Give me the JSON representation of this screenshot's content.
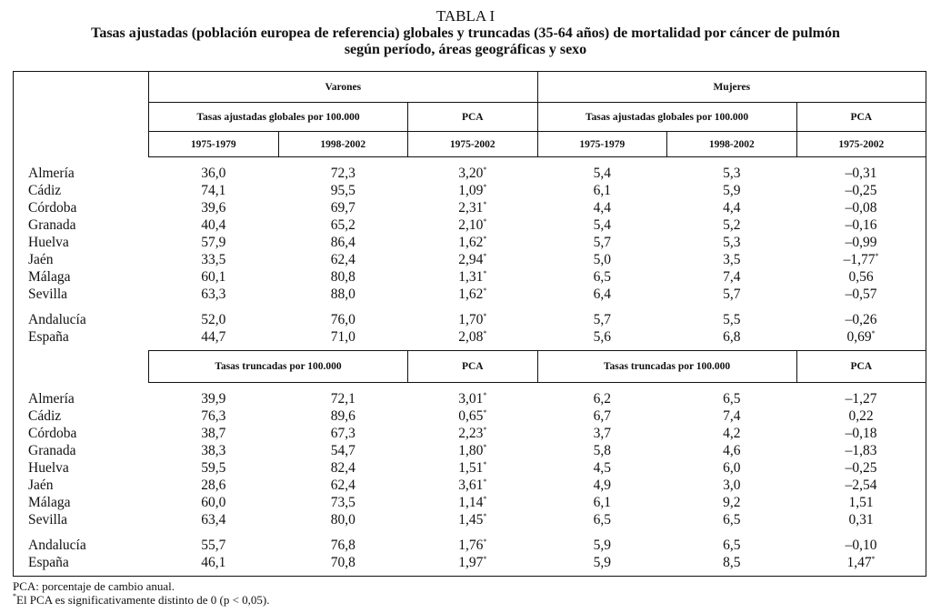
{
  "header": {
    "label": "TABLA I",
    "title_lines": [
      "Tasas ajustadas (población europea de referencia) globales y truncadas (35-64 años) de mortalidad por cáncer de pulmón",
      "según período, áreas geográficas y sexo"
    ]
  },
  "table": {
    "groups": [
      "Varones",
      "Mujeres"
    ],
    "periods": [
      "1975-1979",
      "1998-2002",
      "1975-2002",
      "1975-1979",
      "1998-2002",
      "1975-2002"
    ],
    "sections": [
      {
        "subheaders": [
          "Tasas ajustadas globales por 100.000",
          "PCA",
          "Tasas ajustadas globales por 100.000",
          "PCA"
        ],
        "rows": [
          [
            "Almería",
            "36,0",
            "72,3",
            "3,20*",
            "5,4",
            "5,3",
            "–0,31"
          ],
          [
            "Cádiz",
            "74,1",
            "95,5",
            "1,09*",
            "6,1",
            "5,9",
            "–0,25"
          ],
          [
            "Córdoba",
            "39,6",
            "69,7",
            "2,31*",
            "4,4",
            "4,4",
            "–0,08"
          ],
          [
            "Granada",
            "40,4",
            "65,2",
            "2,10*",
            "5,4",
            "5,2",
            "–0,16"
          ],
          [
            "Huelva",
            "57,9",
            "86,4",
            "1,62*",
            "5,7",
            "5,3",
            "–0,99"
          ],
          [
            "Jaén",
            "33,5",
            "62,4",
            "2,94*",
            "5,0",
            "3,5",
            "–1,77*"
          ],
          [
            "Málaga",
            "60,1",
            "80,8",
            "1,31*",
            "6,5",
            "7,4",
            "0,56"
          ],
          [
            "Sevilla",
            "63,3",
            "88,0",
            "1,62*",
            "6,4",
            "5,7",
            "–0,57"
          ]
        ],
        "totals": [
          [
            "Andalucía",
            "52,0",
            "76,0",
            "1,70*",
            "5,7",
            "5,5",
            "–0,26"
          ],
          [
            "España",
            "44,7",
            "71,0",
            "2,08*",
            "5,6",
            "6,8",
            "0,69*"
          ]
        ]
      },
      {
        "subheaders": [
          "Tasas truncadas por 100.000",
          "PCA",
          "Tasas truncadas por 100.000",
          "PCA"
        ],
        "rows": [
          [
            "Almería",
            "39,9",
            "72,1",
            "3,01*",
            "6,2",
            "6,5",
            "–1,27"
          ],
          [
            "Cádiz",
            "76,3",
            "89,6",
            "0,65*",
            "6,7",
            "7,4",
            "0,22"
          ],
          [
            "Córdoba",
            "38,7",
            "67,3",
            "2,23*",
            "3,7",
            "4,2",
            "–0,18"
          ],
          [
            "Granada",
            "38,3",
            "54,7",
            "1,80*",
            "5,8",
            "4,6",
            "–1,83"
          ],
          [
            "Huelva",
            "59,5",
            "82,4",
            "1,51*",
            "4,5",
            "6,0",
            "–0,25"
          ],
          [
            "Jaén",
            "28,6",
            "62,4",
            "3,61*",
            "4,9",
            "3,0",
            "–2,54"
          ],
          [
            "Málaga",
            "60,0",
            "73,5",
            "1,14*",
            "6,1",
            "9,2",
            "1,51"
          ],
          [
            "Sevilla",
            "63,4",
            "80,0",
            "1,45*",
            "6,5",
            "6,5",
            "0,31"
          ]
        ],
        "totals": [
          [
            "Andalucía",
            "55,7",
            "76,8",
            "1,76*",
            "5,9",
            "6,5",
            "–0,10"
          ],
          [
            "España",
            "46,1",
            "70,8",
            "1,97*",
            "5,9",
            "8,5",
            "1,47*"
          ]
        ]
      }
    ]
  },
  "footnotes": [
    "PCA: porcentaje de cambio anual.",
    "*El PCA es significativamente distinto de 0 (p < 0,05)."
  ]
}
